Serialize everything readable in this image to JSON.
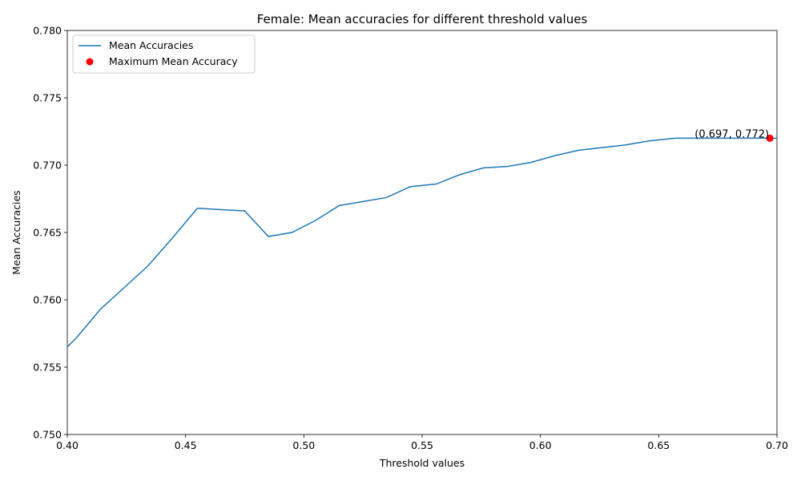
{
  "chart_data": {
    "type": "line",
    "title": "Female: Mean accuracies for different threshold values",
    "xlabel": "Threshold values",
    "ylabel": "Mean Accuracies",
    "xlim": [
      0.4,
      0.7
    ],
    "ylim": [
      0.75,
      0.78
    ],
    "x_ticks": [
      "0.40",
      "0.45",
      "0.50",
      "0.55",
      "0.60",
      "0.65",
      "0.70"
    ],
    "y_ticks": [
      "0.750",
      "0.755",
      "0.760",
      "0.765",
      "0.770",
      "0.775",
      "0.780"
    ],
    "grid": false,
    "legend_position": "upper-left",
    "series": [
      {
        "name": "Mean Accuracies",
        "color": "#1f77b4",
        "x": [
          0.4,
          0.404,
          0.414,
          0.424,
          0.434,
          0.444,
          0.455,
          0.465,
          0.475,
          0.485,
          0.495,
          0.505,
          0.515,
          0.525,
          0.535,
          0.545,
          0.556,
          0.566,
          0.576,
          0.586,
          0.596,
          0.606,
          0.616,
          0.626,
          0.636,
          0.646,
          0.657,
          0.667,
          0.677,
          0.687,
          0.697,
          0.7
        ],
        "y": [
          0.7565,
          0.7572,
          0.7593,
          0.7609,
          0.7625,
          0.7645,
          0.7668,
          0.7667,
          0.7666,
          0.7647,
          0.765,
          0.7659,
          0.767,
          0.7673,
          0.7676,
          0.7684,
          0.7686,
          0.7693,
          0.7698,
          0.7699,
          0.7702,
          0.7707,
          0.7711,
          0.7713,
          0.7715,
          0.7718,
          0.772,
          0.772,
          0.772,
          0.772,
          0.772,
          0.772
        ]
      }
    ],
    "max_point": {
      "name": "Maximum Mean Accuracy",
      "x": 0.697,
      "y": 0.772,
      "color": "#ff0000",
      "label": "(0.697, 0.772)"
    }
  }
}
